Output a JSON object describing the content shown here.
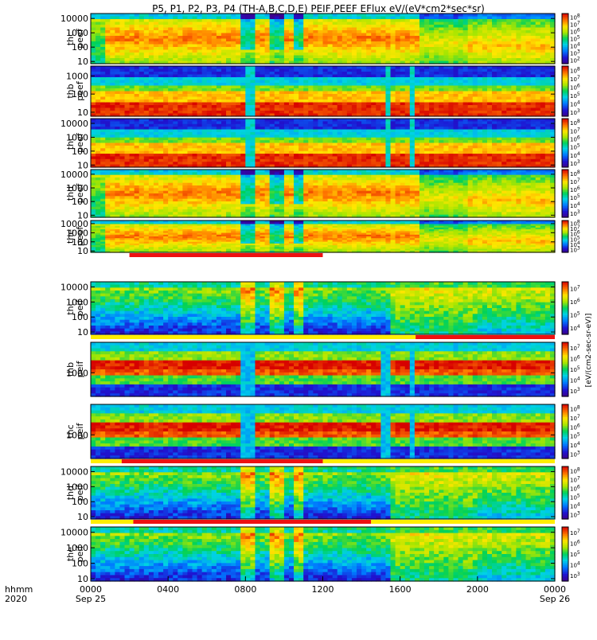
{
  "title": "P5, P1, P2, P3, P4 (TH-A,B,C,D,E) PEIF,PEEF EFlux eV/(eV*cm2*sec*sr)",
  "colorbar_label": "[eV/(cm2-sec-sr-eV)]",
  "chart_data": {
    "type": "heatmap",
    "x_axis": {
      "ticks": [
        "0000",
        "0400",
        "0800",
        "1200",
        "1600",
        "2000",
        "0000"
      ],
      "tick_hours": [
        0,
        4,
        8,
        12,
        16,
        20,
        24
      ],
      "range_hours": [
        0,
        24
      ],
      "dates": [
        "Sep 25",
        "Sep 26"
      ],
      "row_label_1": "hhmm",
      "row_label_2": "2020"
    },
    "panels": [
      {
        "name": "thc peef",
        "ylabel_1": "thc",
        "ylabel_2": "peef",
        "y_ticks": [
          "10000",
          "1000",
          "100",
          "10"
        ],
        "y_tick_values": [
          10000,
          1000,
          100,
          10
        ],
        "y_range": [
          7,
          22000
        ],
        "cbar_ticks": [
          "10^8",
          "10^7",
          "10^6",
          "10^5",
          "10^4",
          "10^3",
          "10^2"
        ],
        "profile": "sheet",
        "bars": []
      },
      {
        "name": "thb peef",
        "ylabel_1": "thb",
        "ylabel_2": "peef",
        "y_ticks": [
          "1000",
          "100",
          "10"
        ],
        "y_tick_values": [
          1000,
          100,
          10
        ],
        "y_range": [
          6,
          3500
        ],
        "cbar_ticks": [
          "10^8",
          "10^7",
          "10^6",
          "10^5",
          "10^4",
          "10^3"
        ],
        "profile": "layered",
        "bars": []
      },
      {
        "name": "thc peef",
        "ylabel_1": "thc",
        "ylabel_2": "peef",
        "y_ticks": [
          "10000",
          "1000",
          "100",
          "10"
        ],
        "y_tick_values": [
          10000,
          1000,
          100,
          10
        ],
        "y_range": [
          7,
          22000
        ],
        "cbar_ticks": [
          "10^8",
          "10^7",
          "10^6",
          "10^5",
          "10^4",
          "10^3"
        ],
        "profile": "layered",
        "bars": []
      },
      {
        "name": "thd peef",
        "ylabel_1": "thd",
        "ylabel_2": "peef",
        "y_ticks": [
          "10000",
          "1000",
          "100",
          "10"
        ],
        "y_tick_values": [
          10000,
          1000,
          100,
          10
        ],
        "y_range": [
          7,
          22000
        ],
        "cbar_ticks": [
          "10^8",
          "10^7",
          "10^6",
          "10^5",
          "10^4",
          "10^3"
        ],
        "profile": "sheet",
        "bars": []
      },
      {
        "name": "the peef",
        "ylabel_1": "the",
        "ylabel_2": "peef",
        "y_ticks": [
          "10000",
          "1000",
          "100",
          "10"
        ],
        "y_tick_values": [
          10000,
          1000,
          100,
          10
        ],
        "y_range": [
          7,
          22000
        ],
        "cbar_ticks": [
          "10^8",
          "10^7",
          "10^6",
          "10^5",
          "10^4",
          "10^3"
        ],
        "profile": "sheet",
        "bars": [
          {
            "from": 2.0,
            "to": 12.0,
            "color": "#ee1111"
          }
        ]
      },
      {
        "name": "thc peif",
        "ylabel_1": "thc",
        "ylabel_2": "peif",
        "y_ticks": [
          "10000",
          "1000",
          "100",
          "10"
        ],
        "y_tick_values": [
          10000,
          1000,
          100,
          10
        ],
        "y_range": [
          7,
          22000
        ],
        "cbar_ticks": [
          "10^7",
          "10^6",
          "10^5",
          "10^4"
        ],
        "profile": "ion",
        "bars": [
          {
            "from": 0,
            "to": 16.8,
            "color": "#ffee00"
          },
          {
            "from": 16.8,
            "to": 24,
            "color": "#ee1111"
          }
        ]
      },
      {
        "name": "thb peif",
        "ylabel_1": "thb",
        "ylabel_2": "peif",
        "y_ticks": [
          "1000"
        ],
        "y_tick_values": [
          1000
        ],
        "y_range": [
          250,
          6000
        ],
        "cbar_ticks": [
          "10^7",
          "10^6",
          "10^5",
          "10^4",
          "10^3"
        ],
        "profile": "ionlayer",
        "bars": []
      },
      {
        "name": "thc peif",
        "ylabel_1": "thc",
        "ylabel_2": "peif",
        "y_ticks": [
          "1000"
        ],
        "y_tick_values": [
          1000
        ],
        "y_range": [
          250,
          6000
        ],
        "cbar_ticks": [
          "10^8",
          "10^7",
          "10^6",
          "10^5",
          "10^4",
          "10^3"
        ],
        "profile": "ionlayer",
        "bars": [
          {
            "from": 0,
            "to": 1.6,
            "color": "#ffee00"
          },
          {
            "from": 1.6,
            "to": 12.0,
            "color": "#ee1111"
          },
          {
            "from": 12.0,
            "to": 24,
            "color": "#ffee00"
          }
        ]
      },
      {
        "name": "thd peif",
        "ylabel_1": "thd",
        "ylabel_2": "peif",
        "y_ticks": [
          "10000",
          "1000",
          "100",
          "10"
        ],
        "y_tick_values": [
          10000,
          1000,
          100,
          10
        ],
        "y_range": [
          7,
          22000
        ],
        "cbar_ticks": [
          "10^8",
          "10^7",
          "10^6",
          "10^5",
          "10^4",
          "10^3"
        ],
        "profile": "ion",
        "bars": [
          {
            "from": 0,
            "to": 2.2,
            "color": "#ffee00"
          },
          {
            "from": 2.2,
            "to": 14.5,
            "color": "#ee1111"
          },
          {
            "from": 14.5,
            "to": 24,
            "color": "#ffee00"
          }
        ]
      },
      {
        "name": "the peif",
        "ylabel_1": "the",
        "ylabel_2": "peif",
        "y_ticks": [
          "10000",
          "1000",
          "100",
          "10"
        ],
        "y_tick_values": [
          10000,
          1000,
          100,
          10
        ],
        "y_range": [
          7,
          22000
        ],
        "cbar_ticks": [
          "10^7",
          "10^6",
          "10^5",
          "10^4",
          "10^3"
        ],
        "profile": "ion",
        "bars": []
      }
    ]
  }
}
